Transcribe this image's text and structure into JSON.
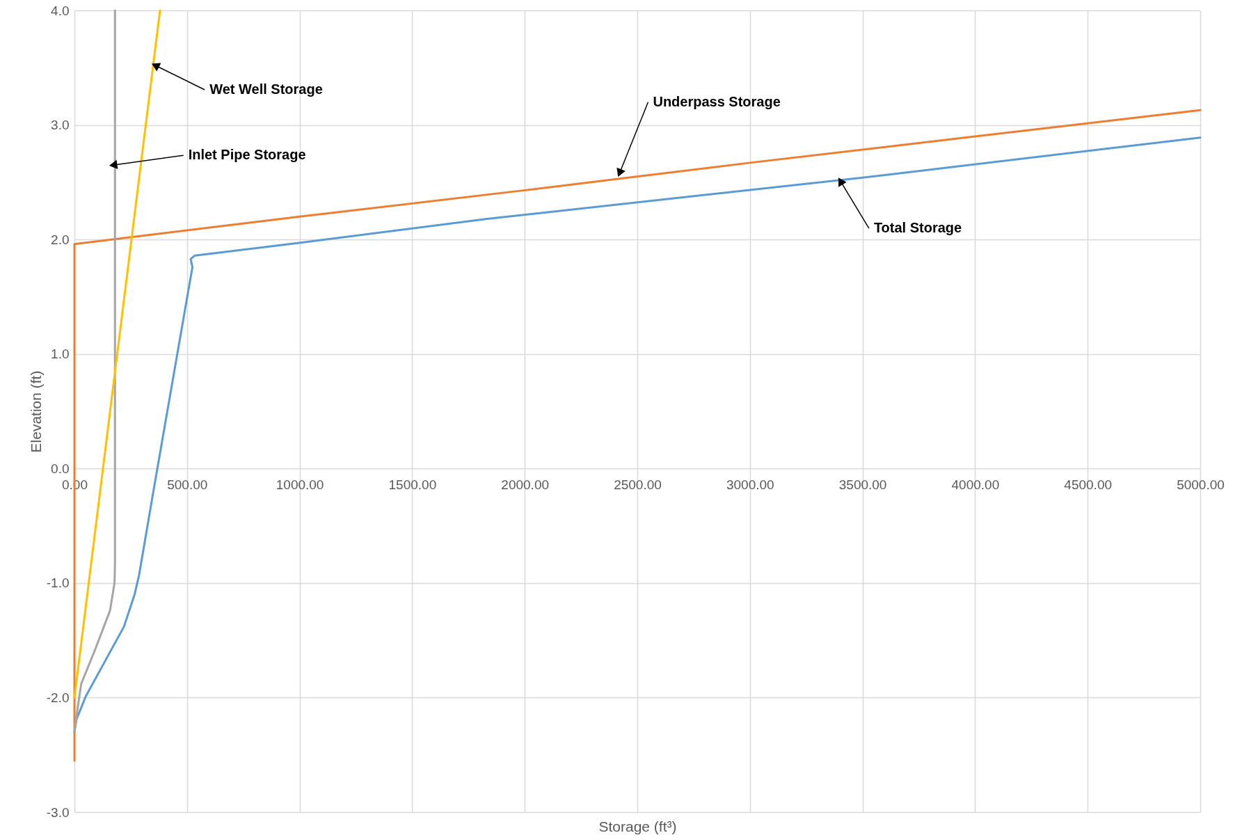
{
  "chart_data": {
    "type": "line",
    "xlabel": "Storage (ft³)",
    "ylabel": "Elevation (ft)",
    "xlim": [
      0,
      5000
    ],
    "ylim": [
      -3,
      4
    ],
    "xticks": [
      {
        "value": 0,
        "label": "0.00"
      },
      {
        "value": 500,
        "label": "500.00"
      },
      {
        "value": 1000,
        "label": "1000.00"
      },
      {
        "value": 1500,
        "label": "1500.00"
      },
      {
        "value": 2000,
        "label": "2000.00"
      },
      {
        "value": 2500,
        "label": "2500.00"
      },
      {
        "value": 3000,
        "label": "3000.00"
      },
      {
        "value": 3500,
        "label": "3500.00"
      },
      {
        "value": 4000,
        "label": "4000.00"
      },
      {
        "value": 4500,
        "label": "4500.00"
      },
      {
        "value": 5000,
        "label": "5000.00"
      }
    ],
    "yticks": [
      {
        "value": -3,
        "label": "-3.0"
      },
      {
        "value": -2,
        "label": "-2.0"
      },
      {
        "value": -1,
        "label": "-1.0"
      },
      {
        "value": 0,
        "label": "0.0"
      },
      {
        "value": 1,
        "label": "1.0"
      },
      {
        "value": 2,
        "label": "2.0"
      },
      {
        "value": 3,
        "label": "3.0"
      },
      {
        "value": 4,
        "label": "4.0"
      }
    ],
    "grid": true,
    "line_style": "solid",
    "marker": "none",
    "series": [
      {
        "color": "#5b9bd5",
        "x": [
          0,
          9,
          50,
          153,
          220,
          267,
          287,
          354,
          524,
          516,
          535,
          998,
          1833,
          3500,
          5000
        ],
        "values": [
          -2.3,
          -2.19,
          -1.99,
          -1.62,
          -1.38,
          -1.1,
          -0.93,
          -0.16,
          1.76,
          1.83,
          1.86,
          1.97,
          2.18,
          2.54,
          2.89
        ]
      },
      {
        "color": "#ed7d31",
        "x": [
          0,
          0,
          0,
          1000,
          2000,
          3000,
          4000,
          5000
        ],
        "values": [
          -2.55,
          1.88,
          1.96,
          2.2,
          2.43,
          2.67,
          2.9,
          3.13
        ]
      },
      {
        "color": "#a5a5a5",
        "x": [
          0,
          7,
          30,
          92,
          158,
          178,
          180,
          180
        ],
        "values": [
          -2.3,
          -2.19,
          -1.88,
          -1.58,
          -1.24,
          -1.0,
          -0.83,
          4.0
        ]
      },
      {
        "color": "#ffc000",
        "x": [
          0,
          380
        ],
        "values": [
          -2.0,
          4.0
        ]
      }
    ],
    "annotations": [
      {
        "text": "Wet Well Storage",
        "x": 359,
        "y": 3.52
      },
      {
        "text": "Inlet Pipe Storage",
        "x": 172,
        "y": 2.65
      },
      {
        "text": "Underpass Storage",
        "x": 2421,
        "y": 2.58
      },
      {
        "text": "Total Storage",
        "x": 3402,
        "y": 2.51
      }
    ]
  }
}
